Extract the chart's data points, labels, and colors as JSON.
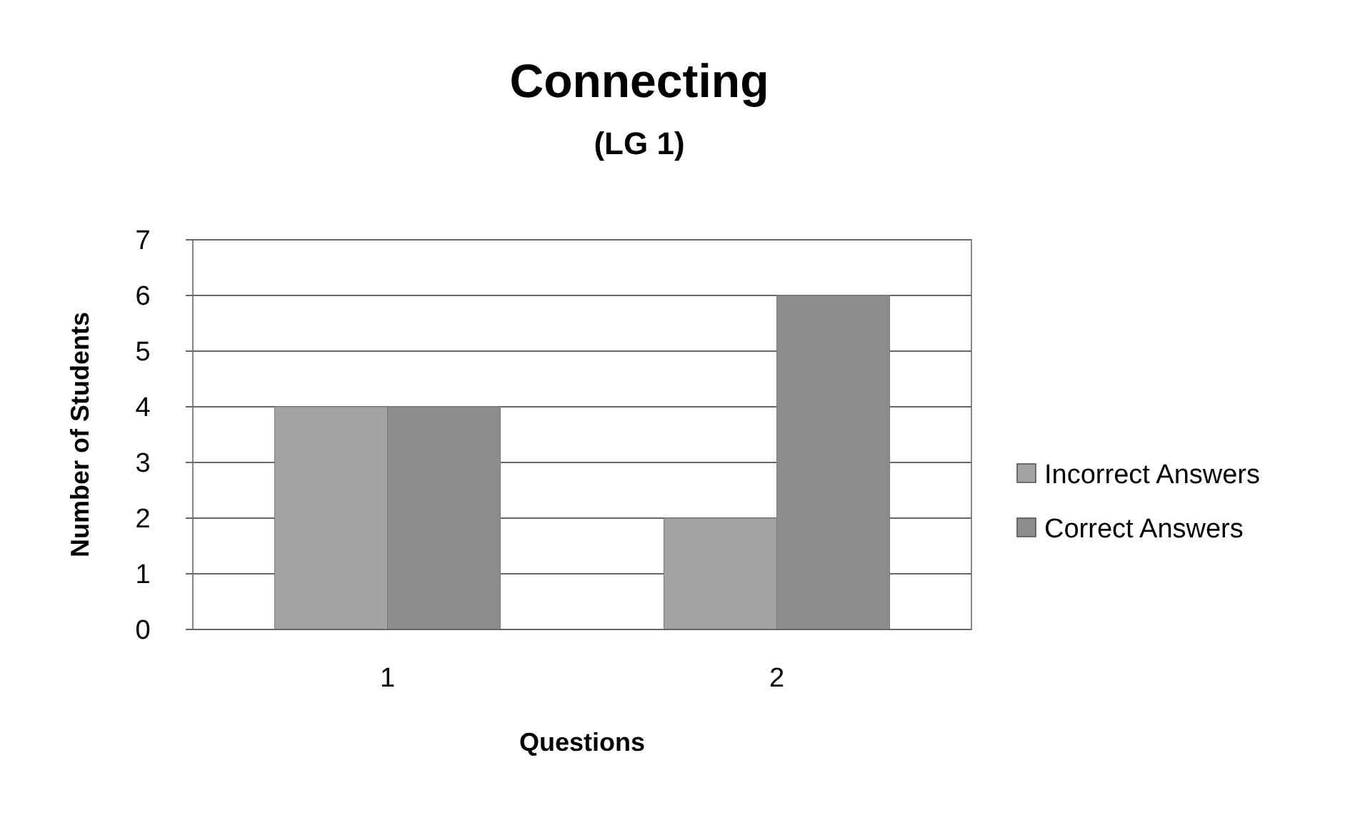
{
  "chart_data": {
    "type": "bar",
    "title": "Connecting",
    "subtitle": "(LG 1)",
    "xlabel": "Questions",
    "ylabel": "Number of Students",
    "categories": [
      "1",
      "2"
    ],
    "series": [
      {
        "name": "Incorrect Answers",
        "color": "#a3a3a3",
        "values": [
          4,
          2
        ]
      },
      {
        "name": "Correct Answers",
        "color": "#8c8c8c",
        "values": [
          4,
          6
        ]
      }
    ],
    "ylim": [
      0,
      7
    ],
    "yticks": [
      0,
      1,
      2,
      3,
      4,
      5,
      6,
      7
    ],
    "grid": "y",
    "legend": "right"
  }
}
